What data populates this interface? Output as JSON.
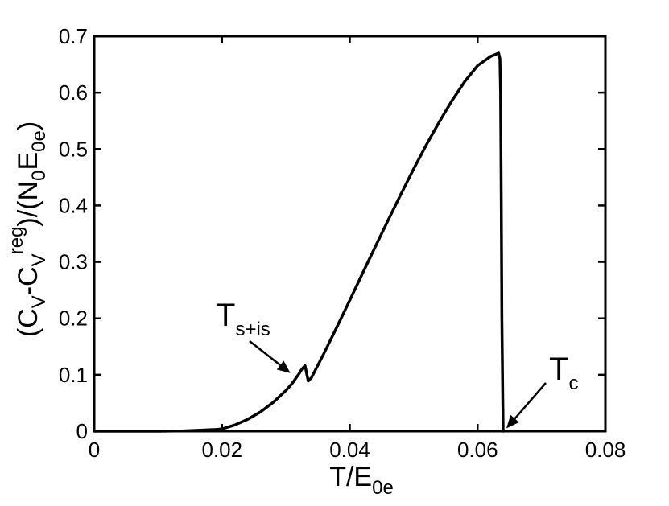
{
  "chart_data": {
    "type": "line",
    "xlabel": {
      "main": "T/E",
      "sub": "0e"
    },
    "ylabel": {
      "p1": "(C",
      "s1": "V",
      "p2": "-C",
      "s2": "V",
      "sup": "reg",
      "p3": ")/(N",
      "s3": "0",
      "p4": "E",
      "s4": "0e",
      "p5": ")"
    },
    "xlim": [
      0,
      0.08
    ],
    "ylim": [
      0,
      0.7
    ],
    "xticks": [
      0,
      0.02,
      0.04,
      0.06,
      0.08
    ],
    "xtick_labels": [
      "0",
      "0.02",
      "0.04",
      "0.06",
      "0.08"
    ],
    "yticks": [
      0,
      0.1,
      0.2,
      0.3,
      0.4,
      0.5,
      0.6,
      0.7
    ],
    "ytick_labels": [
      "0",
      "0.1",
      "0.2",
      "0.3",
      "0.4",
      "0.5",
      "0.6",
      "0.7"
    ],
    "grid": false,
    "line_color": "#000000",
    "series": [
      {
        "x": [
          0,
          0.01,
          0.014,
          0.017,
          0.019,
          0.02,
          0.022,
          0.024,
          0.026,
          0.028,
          0.03,
          0.031,
          0.032,
          0.0325,
          0.033,
          0.0335,
          0.034,
          0.036,
          0.038,
          0.04,
          0.042,
          0.044,
          0.046,
          0.048,
          0.05,
          0.052,
          0.054,
          0.056,
          0.058,
          0.06,
          0.062,
          0.0633,
          0.0635,
          0.0636,
          0.0637,
          0.0638,
          0.064,
          0.08
        ],
        "y": [
          0,
          0,
          0.0005,
          0.002,
          0.003,
          0.004,
          0.011,
          0.021,
          0.034,
          0.051,
          0.072,
          0.085,
          0.101,
          0.11,
          0.116,
          0.089,
          0.095,
          0.139,
          0.185,
          0.232,
          0.28,
          0.327,
          0.374,
          0.42,
          0.465,
          0.508,
          0.548,
          0.586,
          0.62,
          0.648,
          0.664,
          0.67,
          0.66,
          0.6,
          0.42,
          0.2,
          0.0,
          null
        ]
      }
    ],
    "annotations": [
      {
        "main": "T",
        "sub": "s+is",
        "points_to": [
          0.0307,
          0.103
        ]
      },
      {
        "main": "T",
        "sub": "c",
        "points_to": [
          0.0645,
          0.005
        ]
      }
    ]
  }
}
